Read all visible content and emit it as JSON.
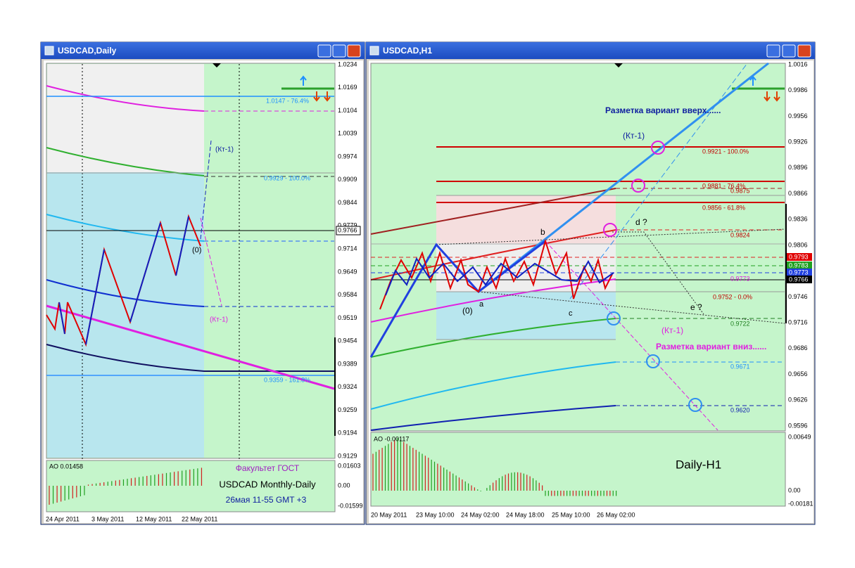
{
  "windows": [
    {
      "title": "USDCAD,Daily",
      "price_axis": [
        "1.0234",
        "1.0169",
        "1.0104",
        "1.0039",
        "0.9974",
        "0.9909",
        "0.9844",
        "0.9779",
        "0.9714",
        "0.9649",
        "0.9584",
        "0.9519",
        "0.9454",
        "0.9389",
        "0.9324",
        "0.9259",
        "0.9194",
        "0.9129"
      ],
      "current_price": "0.9766",
      "level_labels": [
        "1.0147 - 76.4%",
        "0.9929 - 100.0%",
        "0.9359 - 161.8%"
      ],
      "annotations": [
        "(Кт-1)",
        "(Кт-1)",
        "(0)"
      ],
      "ao_label": "AO 0.01458",
      "ao_axis": [
        "0.01603",
        "0.00",
        "-0.01599"
      ],
      "notes": [
        "Факультет ГОСТ",
        "USDCAD Monthly-Daily",
        "26мая 11-55 GMT +3"
      ],
      "dates": [
        "24 Apr 2011",
        "3 May 2011",
        "12 May 2011",
        "22 May 2011"
      ]
    },
    {
      "title": "USDCAD,H1",
      "price_axis": [
        "1.0016",
        "0.9986",
        "0.9956",
        "0.9926",
        "0.9896",
        "0.9866",
        "0.9836",
        "0.9806",
        "0.9776",
        "0.9746",
        "0.9716",
        "0.9686",
        "0.9656",
        "0.9626",
        "0.9596"
      ],
      "boxed_prices": [
        "0.9793",
        "0.9783",
        "0.9773",
        "0.9766"
      ],
      "level_labels": [
        "0.9921 - 100.0%",
        "0.9881 - 76.4%",
        "0.9875",
        "0.9856 - 61.8%",
        "0.9824",
        "0.9773",
        "0.9752 - 0.0%",
        "0.9722",
        "0.9671",
        "0.9620"
      ],
      "annotations": [
        "Разметка вариант вверх......",
        "(Кт-1)",
        "d ?",
        "b",
        "(0)",
        "a",
        "c",
        "e ?",
        "(Кт-1)",
        "Разметка вариант вниз......"
      ],
      "ao_label": "AO -0.00117",
      "ao_axis": [
        "0.00649",
        "0.00",
        "-0.00181"
      ],
      "notes": [
        "Daily-H1"
      ],
      "dates": [
        "20 May 2011",
        "23 May 10:00",
        "24 May 02:00",
        "24 May 18:00",
        "25 May 10:00",
        "26 May 02:00"
      ]
    }
  ]
}
